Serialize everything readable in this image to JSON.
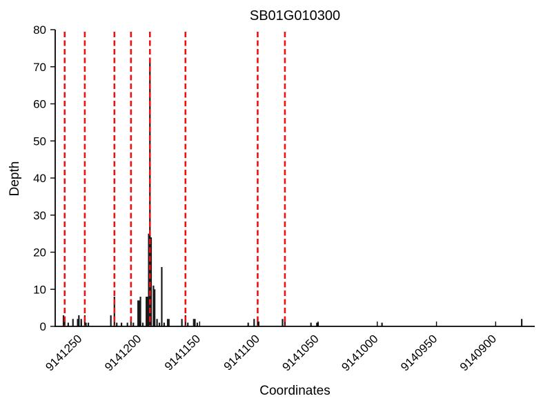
{
  "figure": {
    "background": "#ffffff"
  },
  "chart_data": {
    "type": "bar",
    "title": "SB01G010300",
    "xlabel": "Coordinates",
    "ylabel": "Depth",
    "grid": false,
    "legend": "none",
    "axis_color": "#000000",
    "bar_color": "#1a1a1a",
    "vline_color": "#ef1010",
    "vline_style": "dashed",
    "x_axis": {
      "reversed": true,
      "left_value": 9141272,
      "right_value": 9140867,
      "ticks": [
        9141250,
        9141200,
        9141150,
        9141100,
        9141050,
        9141000,
        9140950,
        9140900
      ],
      "tick_label_rotation_deg": 45
    },
    "y_axis": {
      "min": 0,
      "max": 80,
      "ticks": [
        0,
        10,
        20,
        30,
        40,
        50,
        60,
        70,
        80
      ]
    },
    "vlines": [
      9141264,
      9141247,
      9141222,
      9141208,
      9141192,
      9141162,
      9141101,
      9141078
    ],
    "bars": [
      {
        "coord": 9141265,
        "depth": 3
      },
      {
        "coord": 9141264,
        "depth": 2
      },
      {
        "coord": 9141261,
        "depth": 1
      },
      {
        "coord": 9141257,
        "depth": 2
      },
      {
        "coord": 9141253,
        "depth": 2
      },
      {
        "coord": 9141252,
        "depth": 3
      },
      {
        "coord": 9141250,
        "depth": 2
      },
      {
        "coord": 9141247,
        "depth": 3
      },
      {
        "coord": 9141246,
        "depth": 1
      },
      {
        "coord": 9141244,
        "depth": 1
      },
      {
        "coord": 9141225,
        "depth": 3
      },
      {
        "coord": 9141222,
        "depth": 8
      },
      {
        "coord": 9141220,
        "depth": 1
      },
      {
        "coord": 9141216,
        "depth": 1
      },
      {
        "coord": 9141211,
        "depth": 1
      },
      {
        "coord": 9141208,
        "depth": 2
      },
      {
        "coord": 9141206,
        "depth": 1
      },
      {
        "coord": 9141202,
        "depth": 7
      },
      {
        "coord": 9141201,
        "depth": 7
      },
      {
        "coord": 9141200,
        "depth": 8
      },
      {
        "coord": 9141198,
        "depth": 1
      },
      {
        "coord": 9141195,
        "depth": 8
      },
      {
        "coord": 9141194,
        "depth": 8
      },
      {
        "coord": 9141193,
        "depth": 25
      },
      {
        "coord": 9141192,
        "depth": 72
      },
      {
        "coord": 9141191,
        "depth": 24
      },
      {
        "coord": 9141189,
        "depth": 11
      },
      {
        "coord": 9141188,
        "depth": 10
      },
      {
        "coord": 9141186,
        "depth": 2
      },
      {
        "coord": 9141184,
        "depth": 1
      },
      {
        "coord": 9141182,
        "depth": 16
      },
      {
        "coord": 9141180,
        "depth": 1
      },
      {
        "coord": 9141177,
        "depth": 2
      },
      {
        "coord": 9141176,
        "depth": 2
      },
      {
        "coord": 9141165,
        "depth": 2
      },
      {
        "coord": 9141162,
        "depth": 3
      },
      {
        "coord": 9141160,
        "depth": 1
      },
      {
        "coord": 9141155,
        "depth": 2
      },
      {
        "coord": 9141154,
        "depth": 2
      },
      {
        "coord": 9141152,
        "depth": 1
      },
      {
        "coord": 9141109,
        "depth": 1
      },
      {
        "coord": 9141104,
        "depth": 2
      },
      {
        "coord": 9141101,
        "depth": 2
      },
      {
        "coord": 9141080,
        "depth": 2
      },
      {
        "coord": 9141078,
        "depth": 2
      },
      {
        "coord": 9141056,
        "depth": 1
      },
      {
        "coord": 9141051,
        "depth": 1
      },
      {
        "coord": 9141050,
        "depth": 1
      },
      {
        "coord": 9140996,
        "depth": 1
      },
      {
        "coord": 9140878,
        "depth": 2
      }
    ]
  }
}
